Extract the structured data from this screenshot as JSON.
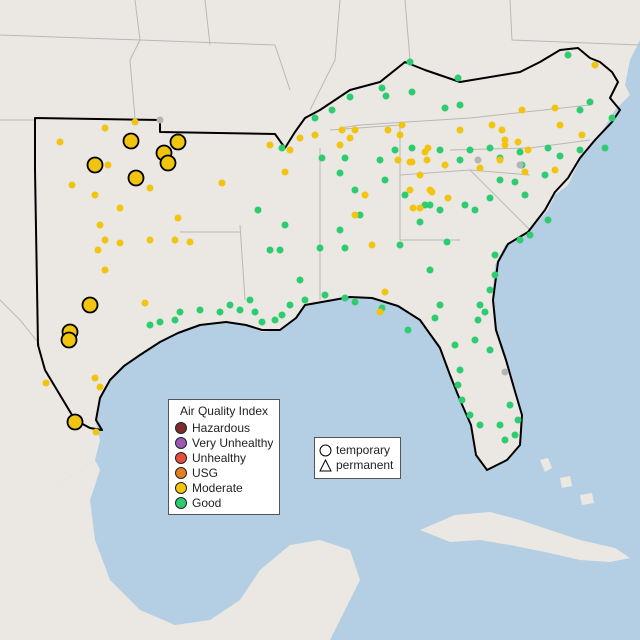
{
  "map": {
    "colors": {
      "ocean": "#b4cfe3",
      "land": "#ebe8e4",
      "border": "#b8b8b8",
      "outline": "#000000",
      "marker_edge": "#000000"
    },
    "region_outline": "Texas, Oklahoma, Louisiana, Mississippi, Alabama, Georgia, Florida, South Carolina, North Carolina, Tennessee, Kentucky, Virginia, Arkansas",
    "monitor_counts": {
      "good": 102,
      "moderate": 67,
      "moderate_large": 12,
      "unavailable": 4
    }
  },
  "aqi_legend": {
    "title": "Air Quality Index",
    "items": [
      {
        "label": "Hazardous",
        "color": "#7e2b2b"
      },
      {
        "label": "Very Unhealthy",
        "color": "#9b59b6"
      },
      {
        "label": "Unhealthy",
        "color": "#e74c3c"
      },
      {
        "label": "USG",
        "color": "#e67e22"
      },
      {
        "label": "Moderate",
        "color": "#f1c40f"
      },
      {
        "label": "Good",
        "color": "#2ecc71"
      }
    ]
  },
  "type_legend": {
    "items": [
      {
        "label": "temporary",
        "icon": "circle-icon"
      },
      {
        "label": "permanent",
        "icon": "triangle-icon"
      }
    ]
  }
}
